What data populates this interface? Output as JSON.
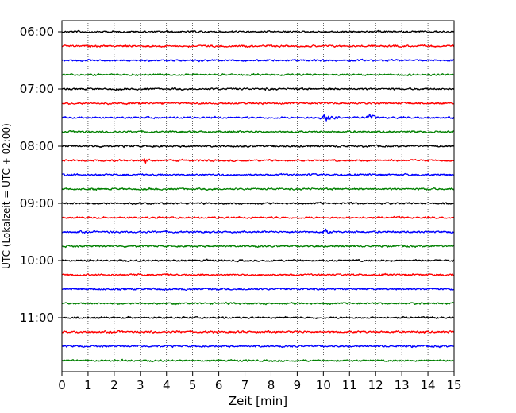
{
  "chart_data": {
    "type": "line",
    "title": "",
    "xlabel": "Zeit  [min]",
    "ylabel": "UTC (Lokalzeit = UTC + 02:00)",
    "xlim": [
      0,
      15
    ],
    "x_ticks": [
      0,
      1,
      2,
      3,
      4,
      5,
      6,
      7,
      8,
      9,
      10,
      11,
      12,
      13,
      14,
      15
    ],
    "y_tick_labels": [
      "06:00",
      "07:00",
      "08:00",
      "09:00",
      "10:00",
      "11:00"
    ],
    "y_tick_rows": [
      0,
      4,
      8,
      12,
      16,
      20
    ],
    "grid": "vertical-dotted",
    "row_minutes": 15,
    "start_time": "06:00",
    "end_time": "12:00",
    "row_count": 24,
    "colors": [
      "#000000",
      "#ff0000",
      "#0000ff",
      "#008000"
    ],
    "events": [
      {
        "row": 6,
        "center_min": 10.2,
        "duration_min": 0.9,
        "amplitude": 2.2
      },
      {
        "row": 6,
        "center_min": 11.8,
        "duration_min": 0.6,
        "amplitude": 1.3
      },
      {
        "row": 14,
        "center_min": 10.1,
        "duration_min": 0.4,
        "amplitude": 1.4
      },
      {
        "row": 9,
        "center_min": 3.2,
        "duration_min": 0.4,
        "amplitude": 1.3
      }
    ]
  }
}
